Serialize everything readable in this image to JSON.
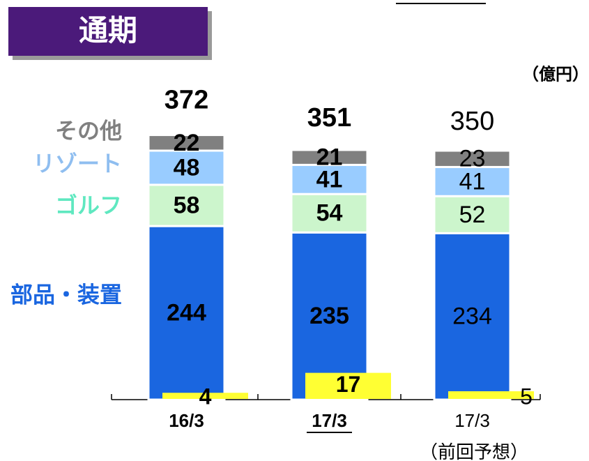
{
  "chart_data": {
    "type": "bar",
    "stacked": true,
    "title": "通期",
    "unit": "（億円）",
    "categories": [
      "16/3",
      "17/3",
      "17/3"
    ],
    "category_note": "（前回予想）",
    "totals": [
      372,
      351,
      350
    ],
    "series": [
      {
        "name": "部品・装置",
        "color": "#1a66e0",
        "label_color": "#1a66e0",
        "values": [
          244,
          235,
          234
        ]
      },
      {
        "name": "ゴルフ",
        "color": "#ccf5cc",
        "label_color": "#5fe8c0",
        "values": [
          58,
          54,
          52
        ]
      },
      {
        "name": "リゾート",
        "color": "#99ccff",
        "label_color": "#8fbef0",
        "values": [
          48,
          41,
          41
        ]
      },
      {
        "name": "その他",
        "color": "#808080",
        "label_color": "#808080",
        "values": [
          22,
          21,
          23
        ]
      }
    ],
    "overlay": {
      "color": "#ffff33",
      "values": [
        4,
        17,
        5
      ]
    }
  }
}
